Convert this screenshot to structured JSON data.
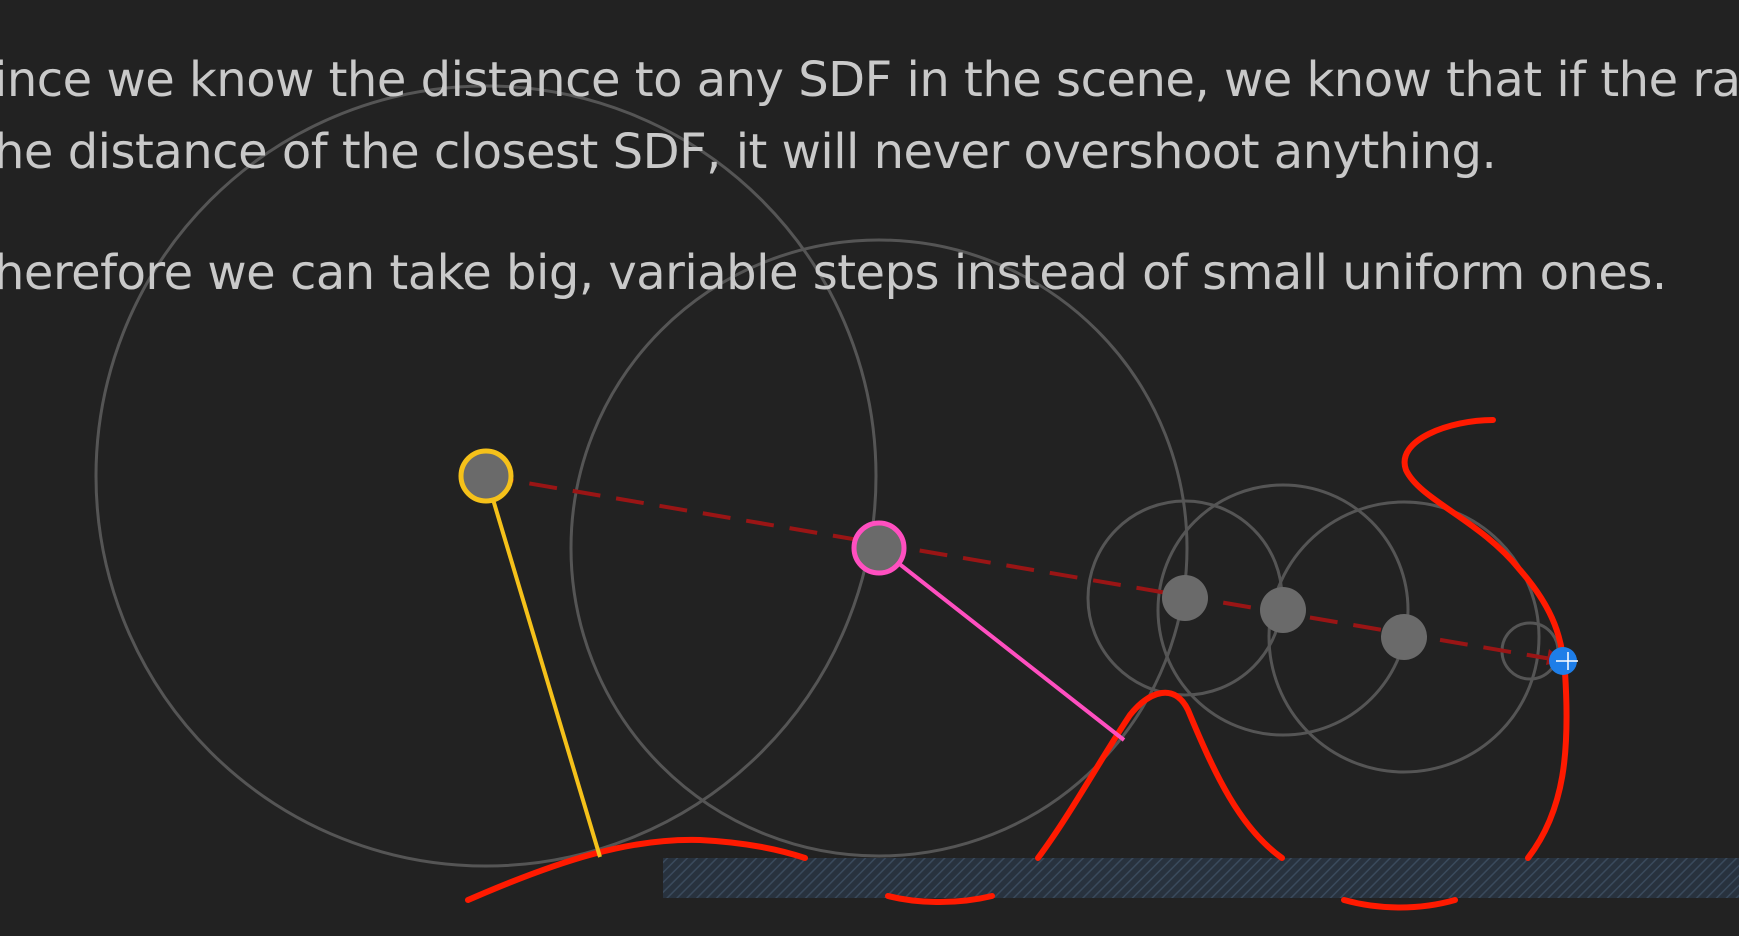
{
  "text": {
    "paragraph_1": {
      "line_1": "ince we know the distance to any SDF in the scene, we know that if the ray m",
      "line_2": "he distance of the closest SDF, it will never overshoot anything."
    },
    "paragraph_2": "herefore we can take big, variable steps instead of small uniform ones."
  },
  "colors": {
    "background": "#222222",
    "text": "#c9c9c9",
    "circle_stroke": "#555555",
    "step_point": "#6a6a6a",
    "ray_dashed": "#9a1515",
    "sdf_curve": "#ff1a00",
    "yellow_marker": "#f5c11a",
    "pink_marker": "#ff4fc0",
    "hit_point": "#1e7ee8",
    "floor_hatch": "#2c3a4a"
  }
}
